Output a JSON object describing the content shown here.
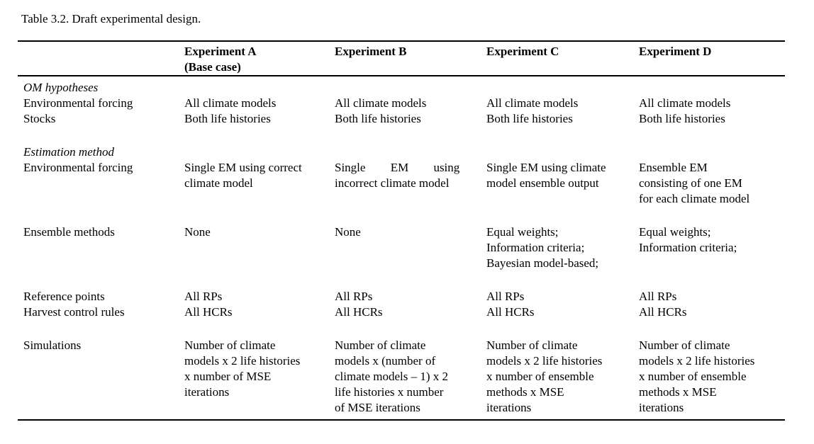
{
  "caption": "Table 3.2. Draft experimental design.",
  "table": {
    "header": {
      "label": "",
      "experiment_a": "Experiment A\n(Base case)",
      "experiment_b": "Experiment B",
      "experiment_c": "Experiment C",
      "experiment_d": "Experiment D"
    },
    "rows": [
      {
        "type": "section",
        "label": "OM hypotheses"
      },
      {
        "type": "data",
        "label": "Environmental forcing",
        "a": "All climate models",
        "b": "All climate models",
        "c": "All climate models",
        "d": "All climate models"
      },
      {
        "type": "data",
        "label": "Stocks",
        "a": "Both life histories",
        "b": "Both life histories",
        "c": "Both life histories",
        "d": "Both life histories"
      },
      {
        "type": "spacer"
      },
      {
        "type": "section",
        "label": "Estimation method"
      },
      {
        "type": "data",
        "label": "Environmental forcing",
        "a": "Single EM using correct\nclimate model",
        "b": "Single EM using\nincorrect climate model",
        "c": "Single EM using climate\nmodel ensemble output",
        "d": "Ensemble EM\nconsisting of one EM\nfor each climate model"
      },
      {
        "type": "spacer"
      },
      {
        "type": "data",
        "label": "Ensemble methods",
        "a": "None",
        "b": "None",
        "c": "Equal weights;\nInformation criteria;\nBayesian model-based;",
        "d": "Equal weights;\nInformation criteria;"
      },
      {
        "type": "spacer"
      },
      {
        "type": "data",
        "label": "Reference points",
        "a": "All RPs",
        "b": "All RPs",
        "c": "All RPs",
        "d": "All RPs"
      },
      {
        "type": "data",
        "label": "Harvest control rules",
        "a": "All HCRs",
        "b": "All HCRs",
        "c": "All HCRs",
        "d": "All HCRs"
      },
      {
        "type": "spacer"
      },
      {
        "type": "data",
        "label": "Simulations",
        "a": "Number of climate\nmodels x 2 life histories\nx number of MSE\niterations",
        "b": "Number of climate\nmodels x (number of\nclimate models – 1) x 2\nlife histories x number\nof MSE iterations",
        "c": "Number of climate\nmodels x 2 life histories\nx number of ensemble\nmethods x MSE\niterations",
        "d": "Number of climate\nmodels x 2 life histories\nx number of ensemble\nmethods x MSE\niterations"
      }
    ]
  }
}
